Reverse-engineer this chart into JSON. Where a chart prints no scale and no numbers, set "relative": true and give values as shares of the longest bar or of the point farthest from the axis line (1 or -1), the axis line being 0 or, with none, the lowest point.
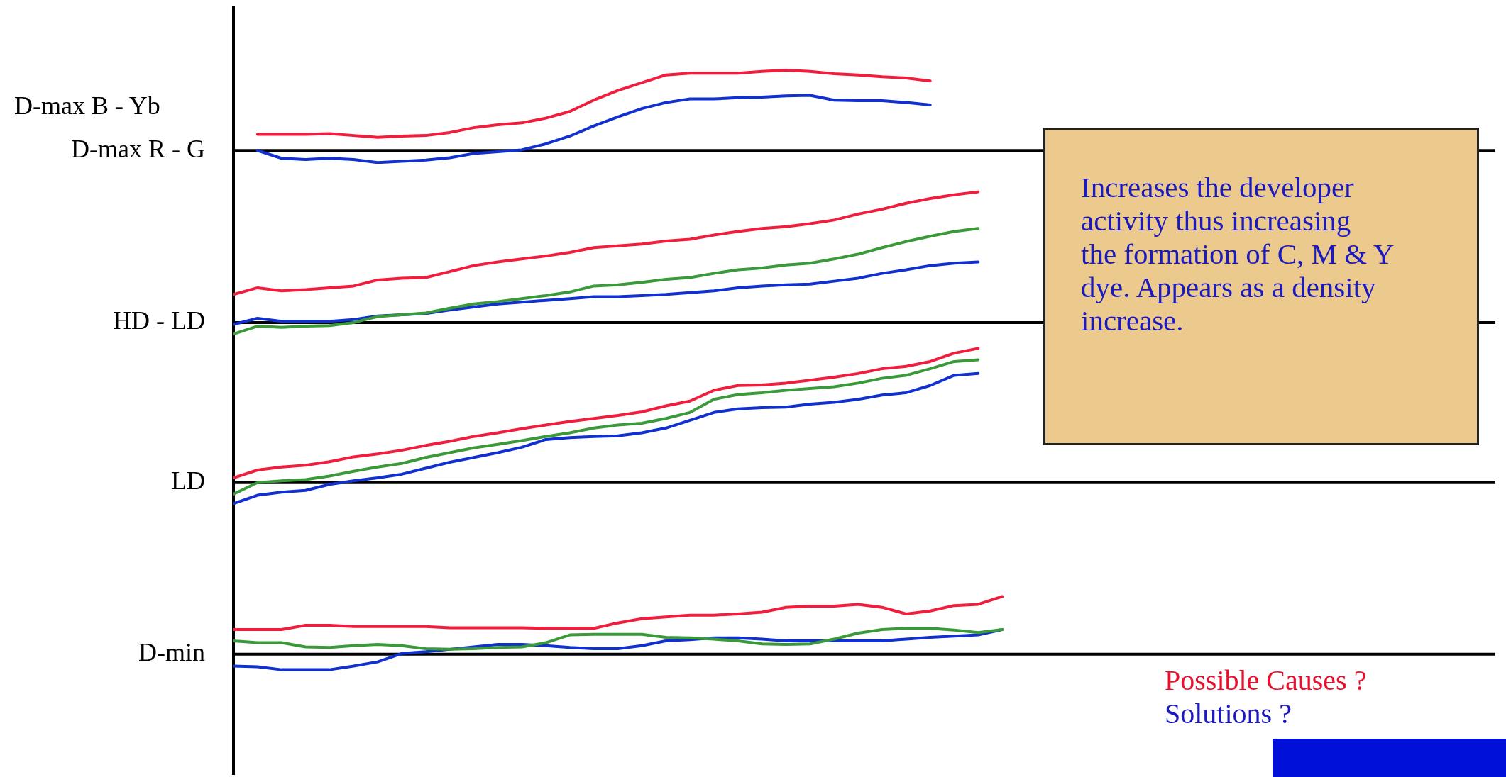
{
  "chart_data": {
    "type": "line",
    "relative": true,
    "legend": false,
    "marker": "none",
    "line_style": "solid",
    "categories": [
      null,
      null,
      null,
      null,
      null,
      null,
      null,
      null,
      null,
      null,
      null,
      null,
      null,
      null,
      null,
      null,
      null,
      null,
      null,
      null,
      null,
      null,
      null,
      null,
      null,
      null,
      null,
      null,
      null,
      null,
      null,
      null,
      null
    ],
    "series": [
      {
        "color": "#f01e3c",
        "values": [
          null,
          0.893,
          0.893,
          0.893,
          0.894,
          0.891,
          0.888,
          0.89,
          0.891,
          0.896,
          0.904,
          0.909,
          0.912,
          0.92,
          0.931,
          0.95,
          0.966,
          0.979,
          0.992,
          0.995,
          0.995,
          0.995,
          0.998,
          1,
          0.998,
          0.994,
          0.992,
          0.989,
          0.987,
          0.982,
          null,
          null,
          null
        ]
      },
      {
        "color": "#1030d0",
        "values": [
          null,
          0.866,
          0.853,
          0.851,
          0.853,
          0.851,
          0.846,
          0.848,
          0.85,
          0.854,
          0.861,
          0.864,
          0.867,
          0.877,
          0.89,
          0.907,
          0.922,
          0.936,
          0.946,
          0.952,
          0.952,
          0.954,
          0.955,
          0.957,
          0.958,
          0.95,
          0.949,
          0.949,
          0.946,
          0.942,
          null,
          null,
          null
        ]
      },
      {
        "color": "#f01e3c",
        "values": [
          0.626,
          0.637,
          0.632,
          0.634,
          0.637,
          0.64,
          0.65,
          0.653,
          0.654,
          0.664,
          0.674,
          0.68,
          0.685,
          0.69,
          0.696,
          0.704,
          0.707,
          0.71,
          0.715,
          0.718,
          0.725,
          0.731,
          0.736,
          0.739,
          0.744,
          0.75,
          0.76,
          0.768,
          0.778,
          0.786,
          0.792,
          0.797,
          null
        ]
      },
      {
        "color": "#3a9a3a",
        "values": [
          0.56,
          0.573,
          0.571,
          0.573,
          0.574,
          0.579,
          0.589,
          0.592,
          0.595,
          0.603,
          0.61,
          0.614,
          0.619,
          0.624,
          0.63,
          0.64,
          0.642,
          0.646,
          0.651,
          0.654,
          0.661,
          0.667,
          0.67,
          0.675,
          0.678,
          0.685,
          0.693,
          0.704,
          0.714,
          0.723,
          0.731,
          0.736,
          null
        ]
      },
      {
        "color": "#1030d0",
        "values": [
          0.576,
          0.586,
          0.581,
          0.581,
          0.581,
          0.584,
          0.59,
          0.592,
          0.594,
          0.6,
          0.605,
          0.61,
          0.613,
          0.616,
          0.619,
          0.622,
          0.622,
          0.624,
          0.626,
          0.629,
          0.632,
          0.637,
          0.64,
          0.642,
          0.643,
          0.648,
          0.653,
          0.661,
          0.667,
          0.674,
          0.678,
          0.68,
          null
        ]
      },
      {
        "color": "#f01e3c",
        "values": [
          0.32,
          0.333,
          0.338,
          0.341,
          0.347,
          0.355,
          0.36,
          0.366,
          0.374,
          0.381,
          0.389,
          0.395,
          0.402,
          0.408,
          0.414,
          0.419,
          0.424,
          0.43,
          0.44,
          0.448,
          0.466,
          0.474,
          0.475,
          0.478,
          0.483,
          0.488,
          0.494,
          0.502,
          0.506,
          0.514,
          0.528,
          0.536,
          null
        ]
      },
      {
        "color": "#3a9a3a",
        "values": [
          0.293,
          0.312,
          0.315,
          0.317,
          0.323,
          0.331,
          0.338,
          0.344,
          0.354,
          0.362,
          0.37,
          0.376,
          0.382,
          0.389,
          0.395,
          0.403,
          0.408,
          0.411,
          0.419,
          0.429,
          0.451,
          0.459,
          0.462,
          0.466,
          0.469,
          0.472,
          0.478,
          0.486,
          0.491,
          0.502,
          0.514,
          0.517,
          null
        ]
      },
      {
        "color": "#1030d0",
        "values": [
          0.277,
          0.291,
          0.296,
          0.299,
          0.309,
          0.315,
          0.32,
          0.326,
          0.336,
          0.346,
          0.354,
          0.362,
          0.371,
          0.384,
          0.387,
          0.389,
          0.39,
          0.395,
          0.403,
          0.416,
          0.429,
          0.435,
          0.437,
          0.438,
          0.443,
          0.446,
          0.451,
          0.458,
          0.462,
          0.474,
          0.491,
          0.494,
          null
        ]
      },
      {
        "color": "#f01e3c",
        "values": [
          0.067,
          0.067,
          0.067,
          0.074,
          0.074,
          0.072,
          0.072,
          0.072,
          0.072,
          0.07,
          0.07,
          0.07,
          0.07,
          0.069,
          0.069,
          0.069,
          0.078,
          0.085,
          0.088,
          0.091,
          0.091,
          0.093,
          0.096,
          0.104,
          0.106,
          0.106,
          0.109,
          0.104,
          0.093,
          0.098,
          0.107,
          0.109,
          0.122
        ]
      },
      {
        "color": "#3a9a3a",
        "values": [
          0.048,
          0.045,
          0.045,
          0.038,
          0.037,
          0.04,
          0.042,
          0.04,
          0.035,
          0.034,
          0.035,
          0.037,
          0.038,
          0.045,
          0.058,
          0.059,
          0.059,
          0.059,
          0.054,
          0.053,
          0.051,
          0.048,
          0.043,
          0.042,
          0.043,
          0.051,
          0.061,
          0.067,
          0.069,
          0.069,
          0.066,
          0.062,
          0.067
        ]
      },
      {
        "color": "#1030d0",
        "values": [
          0.006,
          0.005,
          0,
          0,
          0,
          0.006,
          0.013,
          0.027,
          0.03,
          0.034,
          0.038,
          0.042,
          0.042,
          0.04,
          0.037,
          0.035,
          0.035,
          0.04,
          0.048,
          0.05,
          0.053,
          0.053,
          0.051,
          0.048,
          0.048,
          0.048,
          0.048,
          0.048,
          0.051,
          0.054,
          0.056,
          0.058,
          0.067
        ]
      }
    ],
    "ref_lines": [
      {
        "axis": "y",
        "value": 0.866,
        "label": "D-max R - G",
        "color": "#000000"
      },
      {
        "axis": "y",
        "value": 0.579,
        "label": "HD - LD",
        "color": "#000000"
      },
      {
        "axis": "y",
        "value": 0.312,
        "label": "LD",
        "color": "#000000"
      },
      {
        "axis": "y",
        "value": 0.026,
        "label": "D-min",
        "color": "#000000"
      }
    ],
    "annotations": [
      "D-max B - Yb",
      "Increases the developer\nactivity thus increasing\nthe formation of C, M & Y\ndye.  Appears as a density\nincrease.",
      "Possible Causes ?",
      "Solutions ?"
    ]
  }
}
